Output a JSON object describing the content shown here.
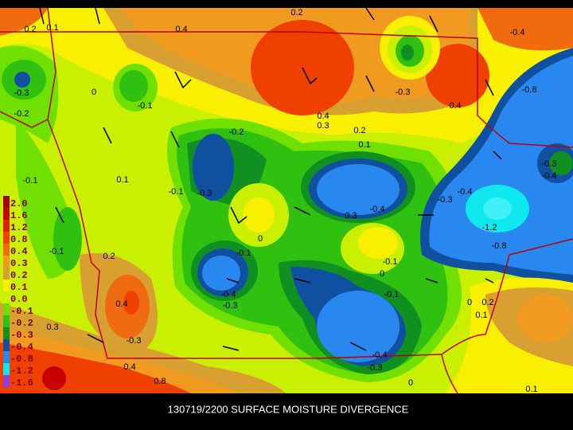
{
  "title": "130719/2200 SURFACE MOISTURE DIVERGENCE",
  "legend": [
    {
      "label": "2.0",
      "color": "#a00000"
    },
    {
      "label": "1.6",
      "color": "#c80000"
    },
    {
      "label": "1.2",
      "color": "#e02000"
    },
    {
      "label": "0.8",
      "color": "#f04000"
    },
    {
      "label": "0.4",
      "color": "#f06a10"
    },
    {
      "label": "0.3",
      "color": "#f09a20"
    },
    {
      "label": "0.2",
      "color": "#d8a030"
    },
    {
      "label": "0.1",
      "color": "#f8f000"
    },
    {
      "label": "0.0",
      "color": "#c8f000"
    },
    {
      "label": "-0.1",
      "color": "#70e000"
    },
    {
      "label": "-0.2",
      "color": "#30c010"
    },
    {
      "label": "-0.3",
      "color": "#109020"
    },
    {
      "label": "-0.4",
      "color": "#1050a0"
    },
    {
      "label": "-0.8",
      "color": "#2888f0"
    },
    {
      "label": "-1.2",
      "color": "#10e8f0"
    },
    {
      "label": "-1.6",
      "color": "#9040e0"
    }
  ],
  "contour_labels": [
    "0.2",
    "0.1",
    "0.4",
    "0.2",
    "-0.4",
    "-0.3",
    "-0.2",
    "0",
    "-0.1",
    "0.4",
    "0.3",
    "-0.3",
    "0.4",
    "-0.8",
    "-0.2",
    "0.2",
    "0.1",
    "-0.1",
    "0.1",
    "-0.1",
    "-0.3",
    "0.3",
    "-0.4",
    "-0.3",
    "-0.4",
    "-1.2",
    "-0.8",
    "0",
    "-0.1",
    "0.2",
    "-0.1",
    "-0.1",
    "0",
    "-0.4",
    "-0.3",
    "-0.1",
    "0.4",
    "0",
    "0.2",
    "0.1",
    "0.3",
    "-0.3",
    "-0.4",
    "-0.3",
    "0.4",
    "0.8",
    "0",
    "0.1",
    "-0.3",
    "-0.4"
  ]
}
